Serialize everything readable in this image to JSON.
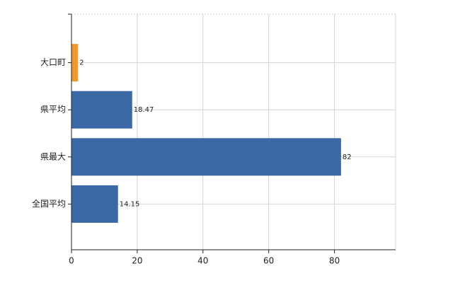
{
  "chart_data": {
    "type": "bar",
    "orientation": "horizontal",
    "categories": [
      "大口町",
      "県平均",
      "県最大",
      "全国平均"
    ],
    "values": [
      2,
      18.47,
      82,
      14.15
    ],
    "colors": [
      "#f0982e",
      "#3a69a6",
      "#3a69a6",
      "#3a69a6"
    ],
    "xlim": [
      0,
      98.6
    ],
    "xticks": [
      0,
      20,
      40,
      60,
      80
    ],
    "grid": true
  }
}
